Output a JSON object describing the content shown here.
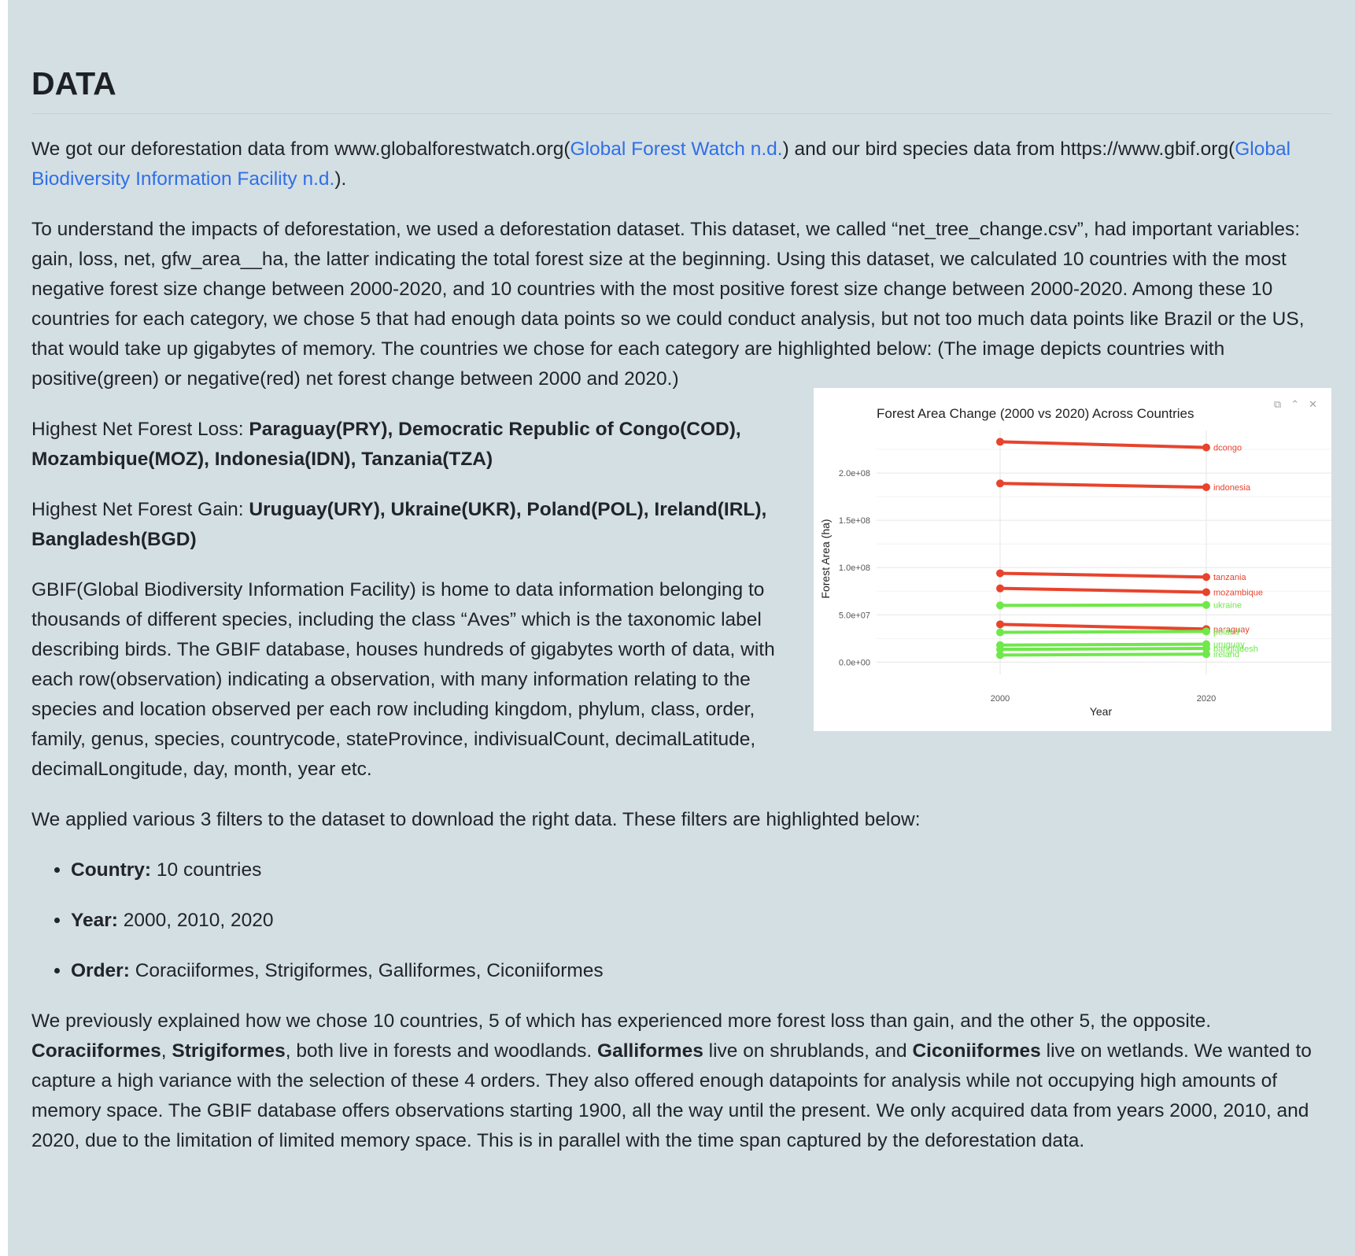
{
  "section": {
    "title": "DATA"
  },
  "p1": {
    "text1": "We got our deforestation data from www.globalforestwatch.org(",
    "link1": "Global Forest Watch n.d.",
    "text2": ") and our bird species data from https://www.gbif.org(",
    "link2": "Global Biodiversity Information Facility n.d.",
    "text3": ")."
  },
  "p2": {
    "text": "To understand the impacts of deforestation, we used a deforestation dataset. This dataset, we called “net_tree_change.csv”, had important variables: gain, loss, net, gfw_area__ha, the latter indicating the total forest size at the beginning. Using this dataset, we calculated 10 countries with the most negative forest size change between 2000-2020, and 10 countries with the most positive forest size change between 2000-2020. Among these 10 countries for each category, we chose 5 that had enough data points so we could conduct analysis, but not too much data points like Brazil or the US, that would take up gigabytes of memory. The countries we chose for each category are highlighted below: (The image depicts countries with positive(green) or negative(red) net forest change between 2000 and 2020.)"
  },
  "p3": {
    "label": "Highest Net Forest Loss: ",
    "value": "Paraguay(PRY), Democratic Republic of Congo(COD), Mozambique(MOZ), Indonesia(IDN), Tanzania(TZA)"
  },
  "p4": {
    "label": "Highest Net Forest Gain: ",
    "value": "Uruguay(URY), Ukraine(UKR), Poland(POL), Ireland(IRL), Bangladesh(BGD)"
  },
  "p5": {
    "text": "GBIF(Global Biodiversity Information Facility) is home to data information belonging to thousands of different species, including the class “Aves” which is the taxonomic label describing birds. The GBIF database, houses hundreds of gigabytes worth of data, with each row(observation) indicating a observation, with many information relating to the species and location observed per each row including kingdom, phylum, class, order, family, genus, species, countrycode, stateProvince, indivisualCount, decimalLatitude, decimalLongitude, day, month, year etc."
  },
  "p6": {
    "text": "We applied various 3 filters to the dataset to download the right data. These filters are highlighted below:"
  },
  "filters": [
    {
      "label": "Country:",
      "value": " 10 countries"
    },
    {
      "label": "Year:",
      "value": " 2000, 2010, 2020"
    },
    {
      "label": "Order:",
      "value": " Coraciiformes, Strigiformes, Galliformes, Ciconiiformes"
    }
  ],
  "p7": {
    "t1": "We previously explained how we chose 10 countries, 5 of which has experienced more forest loss than gain, and the other 5, the opposite. ",
    "b1": "Coraciiformes",
    "t2": ", ",
    "b2": "Strigiformes",
    "t3": ", both live in forests and woodlands. ",
    "b3": "Galliformes",
    "t4": " live on shrublands, and ",
    "b4": "Ciconiiformes",
    "t5": " live on wetlands. We wanted to capture a high variance with the selection of these 4 orders. They also offered enough datapoints for analysis while not occupying high amounts of memory space. The GBIF database offers observations starting 1900, all the way until the present. We only acquired data from years 2000, 2010, and 2020, due to the limitation of limited memory space. This is in parallel with the time span captured by the deforestation data."
  },
  "chart_data": {
    "type": "line",
    "title": "Forest Area Change (2000 vs 2020) Across Countries",
    "xlabel": "Year",
    "ylabel": "Forest Area (ha)",
    "x": [
      2000,
      2020
    ],
    "x_tick_labels": [
      "2000",
      "2020"
    ],
    "y_ticks": [
      0,
      50000000,
      100000000,
      150000000,
      200000000
    ],
    "y_tick_labels": [
      "0.0e+00",
      "5.0e+07",
      "1.0e+08",
      "1.5e+08",
      "2.0e+08"
    ],
    "ylim": [
      -8000000,
      245000000
    ],
    "grid": true,
    "legend": "none",
    "colors": {
      "loss": "#e8432d",
      "gain": "#6fe84a"
    },
    "series": [
      {
        "name": "dcongo",
        "group": "loss",
        "values": [
          233000000,
          227000000
        ]
      },
      {
        "name": "indonesia",
        "group": "loss",
        "values": [
          189000000,
          185000000
        ]
      },
      {
        "name": "tanzania",
        "group": "loss",
        "values": [
          94000000,
          90000000
        ]
      },
      {
        "name": "mozambique",
        "group": "loss",
        "values": [
          78000000,
          74000000
        ]
      },
      {
        "name": "ukraine",
        "group": "gain",
        "values": [
          60000000,
          60500000
        ]
      },
      {
        "name": "paraguay",
        "group": "loss",
        "values": [
          40000000,
          35000000
        ]
      },
      {
        "name": "poland",
        "group": "gain",
        "values": [
          31500000,
          32500000
        ]
      },
      {
        "name": "uruguay",
        "group": "gain",
        "values": [
          18000000,
          19000000
        ]
      },
      {
        "name": "bangladesh",
        "group": "gain",
        "values": [
          13500000,
          14500000
        ]
      },
      {
        "name": "ireland",
        "group": "gain",
        "values": [
          7500000,
          8500000
        ]
      }
    ]
  }
}
